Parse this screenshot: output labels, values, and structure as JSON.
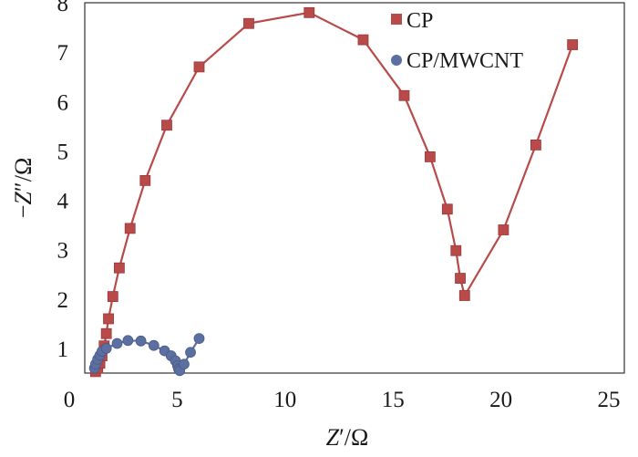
{
  "chart_data": {
    "type": "scatter",
    "title": "",
    "xlabel_prefix": "Z",
    "xlabel_prime": "′",
    "xlabel_unit": "/Ω",
    "ylabel_minus": "−",
    "ylabel_prefix": "Z",
    "ylabel_prime": "″",
    "ylabel_unit": "/Ω",
    "xlim": [
      0,
      25
    ],
    "ylim": [
      0.5,
      8
    ],
    "xticks": [
      0,
      5,
      10,
      15,
      20,
      25
    ],
    "yticks": [
      1,
      2,
      3,
      4,
      5,
      6,
      7,
      8
    ],
    "grid": false,
    "legend_position": "top-right",
    "series": [
      {
        "name": "CP",
        "marker": "square",
        "color": "#b84a4a",
        "line": true,
        "x": [
          0.5,
          0.6,
          0.7,
          0.8,
          0.9,
          1.0,
          1.1,
          1.3,
          1.6,
          2.1,
          2.8,
          3.8,
          5.3,
          7.6,
          10.4,
          12.9,
          14.8,
          16.0,
          16.8,
          17.2,
          17.4,
          17.6,
          19.4,
          20.9,
          22.6
        ],
        "y": [
          0.53,
          0.6,
          0.7,
          0.85,
          1.05,
          1.3,
          1.6,
          2.05,
          2.63,
          3.43,
          4.4,
          5.52,
          6.7,
          7.58,
          7.8,
          7.25,
          6.12,
          4.88,
          3.82,
          2.98,
          2.42,
          2.07,
          3.4,
          5.12,
          7.15
        ]
      },
      {
        "name": "CP/MWCNT",
        "marker": "circle",
        "color": "#5b6fa0",
        "line": true,
        "x": [
          0.45,
          0.5,
          0.6,
          0.7,
          0.8,
          1.0,
          1.5,
          2.0,
          2.6,
          3.2,
          3.7,
          4.0,
          4.2,
          4.3,
          4.35,
          4.4,
          4.6,
          4.9,
          5.3
        ],
        "y": [
          0.6,
          0.68,
          0.78,
          0.86,
          0.94,
          1.0,
          1.1,
          1.16,
          1.15,
          1.06,
          0.95,
          0.85,
          0.75,
          0.65,
          0.58,
          0.55,
          0.68,
          0.92,
          1.2
        ]
      }
    ]
  }
}
